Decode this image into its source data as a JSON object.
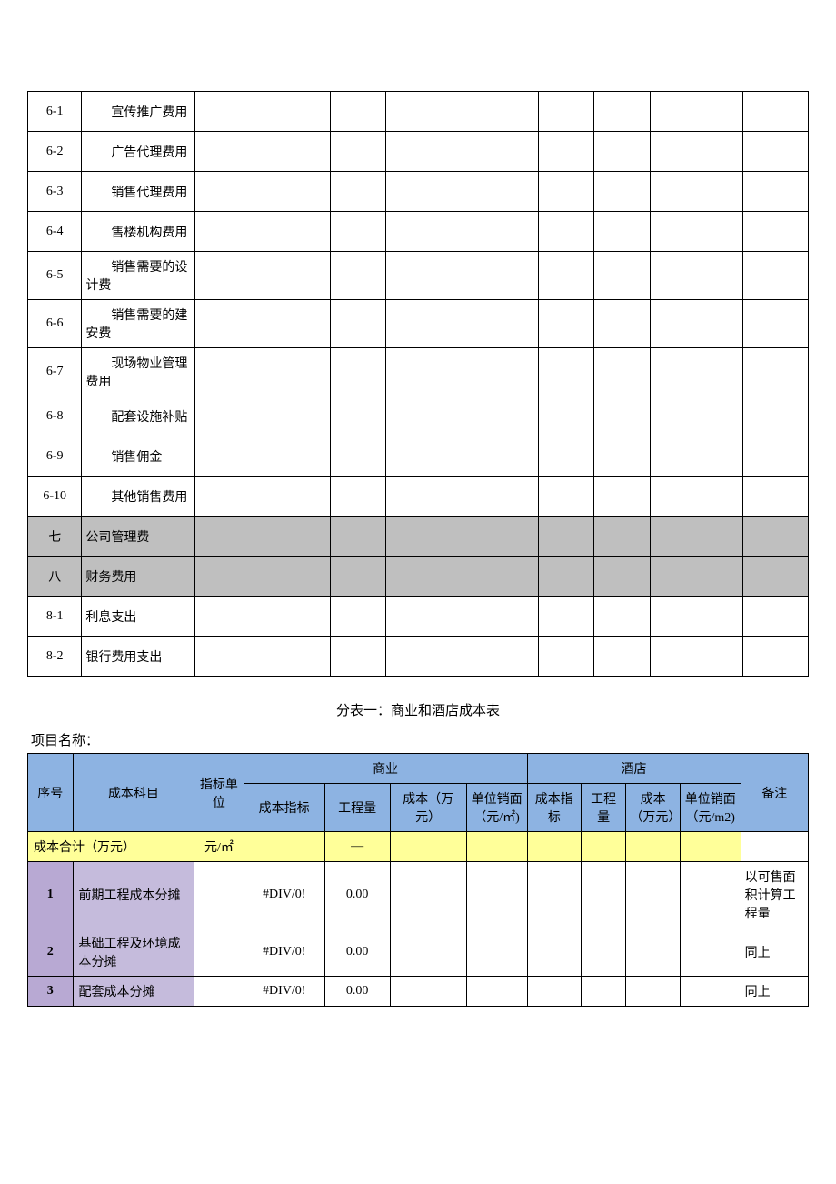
{
  "table1": {
    "rows": [
      {
        "idx": "6-1",
        "name": "宣传推广费用",
        "indent": true,
        "gray": false
      },
      {
        "idx": "6-2",
        "name": "广告代理费用",
        "indent": true,
        "gray": false
      },
      {
        "idx": "6-3",
        "name": "销售代理费用",
        "indent": true,
        "gray": false
      },
      {
        "idx": "6-4",
        "name": "售楼机构费用",
        "indent": true,
        "gray": false
      },
      {
        "idx": "6-5",
        "name": "销售需要的设计费",
        "indent": true,
        "gray": false
      },
      {
        "idx": "6-6",
        "name": "销售需要的建安费",
        "indent": true,
        "gray": false
      },
      {
        "idx": "6-7",
        "name": "现场物业管理费用",
        "indent": true,
        "gray": false
      },
      {
        "idx": "6-8",
        "name": "配套设施补贴",
        "indent": true,
        "gray": false
      },
      {
        "idx": "6-9",
        "name": "销售佣金",
        "indent": true,
        "gray": false
      },
      {
        "idx": "6-10",
        "name": "其他销售费用",
        "indent": true,
        "gray": false
      },
      {
        "idx": "七",
        "name": "公司管理费",
        "indent": false,
        "gray": true
      },
      {
        "idx": "八",
        "name": "财务费用",
        "indent": false,
        "gray": true
      },
      {
        "idx": "8-1",
        "name": "利息支出",
        "indent": false,
        "gray": false
      },
      {
        "idx": "8-2",
        "name": "银行费用支出",
        "indent": false,
        "gray": false
      }
    ],
    "colors": {
      "gray": "#bfbfbf",
      "border": "#000000"
    }
  },
  "section2": {
    "title": "分表一：商业和酒店成本表",
    "project_label": "项目名称：",
    "headers": {
      "seq": "序号",
      "item": "成本科目",
      "unit": "指标单位",
      "group_a": "商业",
      "group_b": "酒店",
      "a1": "成本指标",
      "a2": "工程量",
      "a3": "成本（万元）",
      "a4": "单位销面（元/㎡)",
      "b1": "成本指标",
      "b2": "工程量",
      "b3": "成本（万元）",
      "b4": "单位销面（元/m2)",
      "note": "备注"
    },
    "total": {
      "label": "成本合计（万元）",
      "unit": "元/㎡",
      "a2": "—"
    },
    "rows": [
      {
        "num": "1",
        "name": "前期工程成本分摊",
        "a1": "#DIV/0!",
        "a2": "0.00",
        "note": "以可售面积计算工程量"
      },
      {
        "num": "2",
        "name": "基础工程及环境成本分摊",
        "a1": "#DIV/0!",
        "a2": "0.00",
        "note": "同上"
      },
      {
        "num": "3",
        "name": "配套成本分摊",
        "a1": "#DIV/0!",
        "a2": "0.00",
        "note": "同上"
      }
    ],
    "colors": {
      "header_bg": "#8db3e2",
      "total_bg": "#ffff99",
      "section_num_bg": "#b8a9d3",
      "section_name_bg": "#c5bbdc",
      "border": "#000000"
    }
  }
}
